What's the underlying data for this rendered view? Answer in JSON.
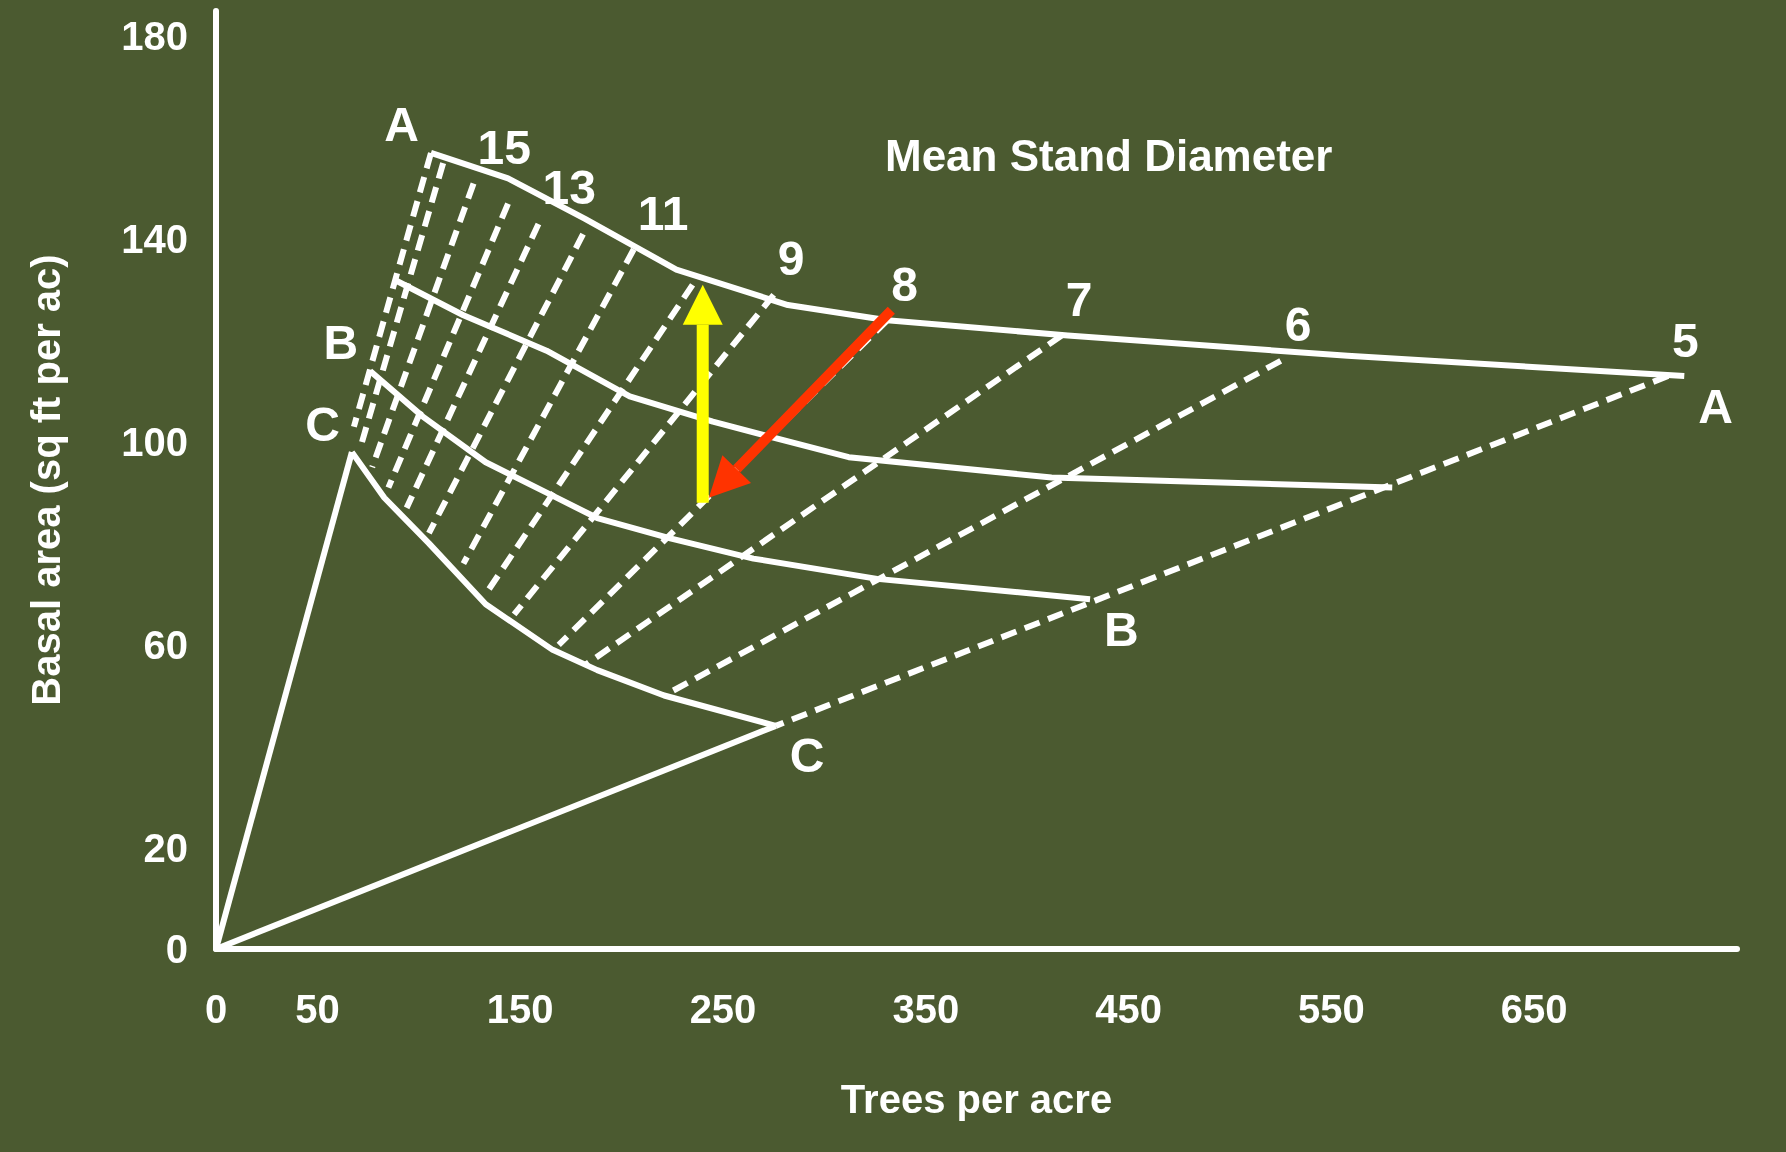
{
  "chart_data": {
    "type": "line",
    "xlabel": "Trees per acre",
    "ylabel": "Basal area (sq ft per ac)",
    "xlim": [
      0,
      750
    ],
    "ylim": [
      0,
      185
    ],
    "xticks": [
      0,
      50,
      150,
      250,
      350,
      450,
      550,
      650
    ],
    "yticks": [
      0,
      20,
      60,
      100,
      140,
      180
    ],
    "marker": "none",
    "series": [
      {
        "color": "#ffffff",
        "x": [
          106,
          144,
          182,
          227,
          282,
          331,
          420,
          558,
          724
        ],
        "values": [
          157,
          152,
          144,
          134,
          127,
          124,
          121,
          117,
          113
        ]
      },
      {
        "color": "#ffffff",
        "x": [
          88,
          122,
          163,
          204,
          245,
          312,
          412,
          580
        ],
        "values": [
          132,
          125,
          118,
          109,
          104,
          97,
          93,
          91
        ]
      },
      {
        "color": "#ffffff",
        "x": [
          76,
          102,
          133,
          163,
          188,
          224,
          265,
          326,
          431
        ],
        "values": [
          114,
          105,
          96,
          90,
          85,
          81,
          77,
          73,
          69
        ]
      },
      {
        "color": "#ffffff",
        "x": [
          67,
          83,
          105,
          133,
          166,
          188,
          221,
          276
        ],
        "values": [
          98,
          89,
          80,
          68,
          59,
          55,
          50,
          44
        ]
      },
      {
        "color": "#ffffff",
        "x": [
          0,
          67
        ],
        "values": [
          0,
          98
        ]
      },
      {
        "color": "#ffffff",
        "x": [
          0,
          276
        ],
        "values": [
          0,
          44
        ]
      },
      {
        "color": "#ffffff",
        "line_style": "dashed",
        "x": [
          716,
          276
        ],
        "values": [
          113,
          44
        ]
      },
      {
        "color": "#ffffff",
        "line_style": "dashed",
        "x": [
          525,
          221
        ],
        "values": [
          116,
          50
        ]
      },
      {
        "color": "#ffffff",
        "line_style": "dashed",
        "x": [
          417,
          182
        ],
        "values": [
          121,
          56
        ]
      },
      {
        "color": "#ffffff",
        "line_style": "dashed",
        "x": [
          331,
          169
        ],
        "values": [
          124,
          60
        ]
      },
      {
        "color": "#ffffff",
        "line_style": "dashed",
        "x": [
          275,
          147
        ],
        "values": [
          129,
          66
        ]
      },
      {
        "color": "#ffffff",
        "line_style": "dashed",
        "x": [
          235,
          133
        ],
        "values": [
          131,
          70
        ]
      },
      {
        "color": "#ffffff",
        "line_style": "dashed",
        "x": [
          206,
          122
        ],
        "values": [
          138,
          76
        ]
      },
      {
        "color": "#ffffff",
        "line_style": "dashed",
        "x": [
          181,
          105
        ],
        "values": [
          141,
          82
        ]
      },
      {
        "color": "#ffffff",
        "line_style": "dashed",
        "x": [
          159,
          94
        ],
        "values": [
          143,
          87
        ]
      },
      {
        "color": "#ffffff",
        "line_style": "dashed",
        "x": [
          144,
          85
        ],
        "values": [
          147,
          91
        ]
      },
      {
        "color": "#ffffff",
        "line_style": "dashed",
        "x": [
          127,
          77
        ],
        "values": [
          151,
          95
        ]
      },
      {
        "color": "#ffffff",
        "line_style": "dashed",
        "x": [
          112,
          72
        ],
        "values": [
          155,
          100
        ]
      },
      {
        "color": "#ffffff",
        "line_style": "dashed",
        "x": [
          106,
          68
        ],
        "values": [
          157,
          103
        ]
      }
    ],
    "annotations": [
      "Mean Stand Diameter",
      {
        "text": "A",
        "x": 106,
        "y": 157
      },
      {
        "text": "A",
        "x": 724,
        "y": 113
      },
      {
        "text": "B",
        "x": 76,
        "y": 114
      },
      {
        "text": "B",
        "x": 431,
        "y": 69
      },
      {
        "text": "C",
        "x": 67,
        "y": 98
      },
      {
        "text": "C",
        "x": 276,
        "y": 44
      },
      {
        "text": "15",
        "x": 127,
        "y": 151
      },
      {
        "text": "13",
        "x": 159,
        "y": 143
      },
      {
        "text": "11",
        "x": 206,
        "y": 138
      },
      {
        "text": "9",
        "x": 275,
        "y": 129
      },
      {
        "text": "8",
        "x": 331,
        "y": 124
      },
      {
        "text": "7",
        "x": 417,
        "y": 121
      },
      {
        "text": "6",
        "x": 525,
        "y": 116
      },
      {
        "text": "5",
        "x": 716,
        "y": 113
      }
    ]
  }
}
